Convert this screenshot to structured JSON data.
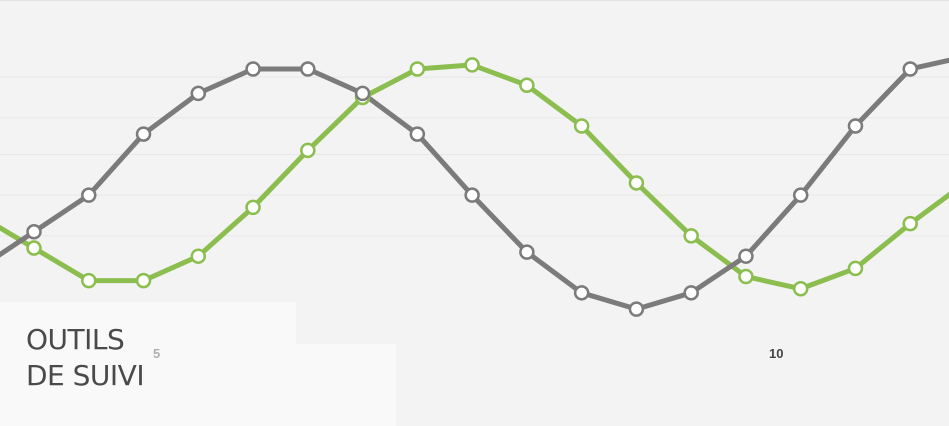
{
  "heading": {
    "line1": "OUTILS",
    "line2": "DE SUIVI"
  },
  "chart_data": {
    "type": "line",
    "x": [
      4,
      4.5,
      5,
      5.5,
      6,
      6.5,
      7,
      7.5,
      8,
      8.5,
      9,
      9.5,
      10,
      10.5,
      11,
      11.5,
      12,
      12.5
    ],
    "series": [
      {
        "color": "#7b7b7b",
        "values": [
          0.46,
          0.55,
          0.7,
          0.8,
          0.86,
          0.86,
          0.8,
          0.7,
          0.55,
          0.41,
          0.31,
          0.27,
          0.31,
          0.4,
          0.55,
          0.72,
          0.86,
          0.89
        ]
      },
      {
        "color": "#8bbd4f",
        "values": [
          0.42,
          0.34,
          0.34,
          0.4,
          0.52,
          0.66,
          0.79,
          0.86,
          0.87,
          0.82,
          0.72,
          0.58,
          0.45,
          0.35,
          0.32,
          0.37,
          0.48,
          0.58
        ]
      }
    ],
    "xticks": [
      {
        "value": 5,
        "label": "5",
        "color": "#b0b0b0"
      },
      {
        "value": 10,
        "label": "10",
        "color": "#444444"
      }
    ],
    "grid": true,
    "colors": {
      "background": "#f3f3f3",
      "grid": "#e8e8e8",
      "marker_fill": "#ffffff"
    }
  }
}
